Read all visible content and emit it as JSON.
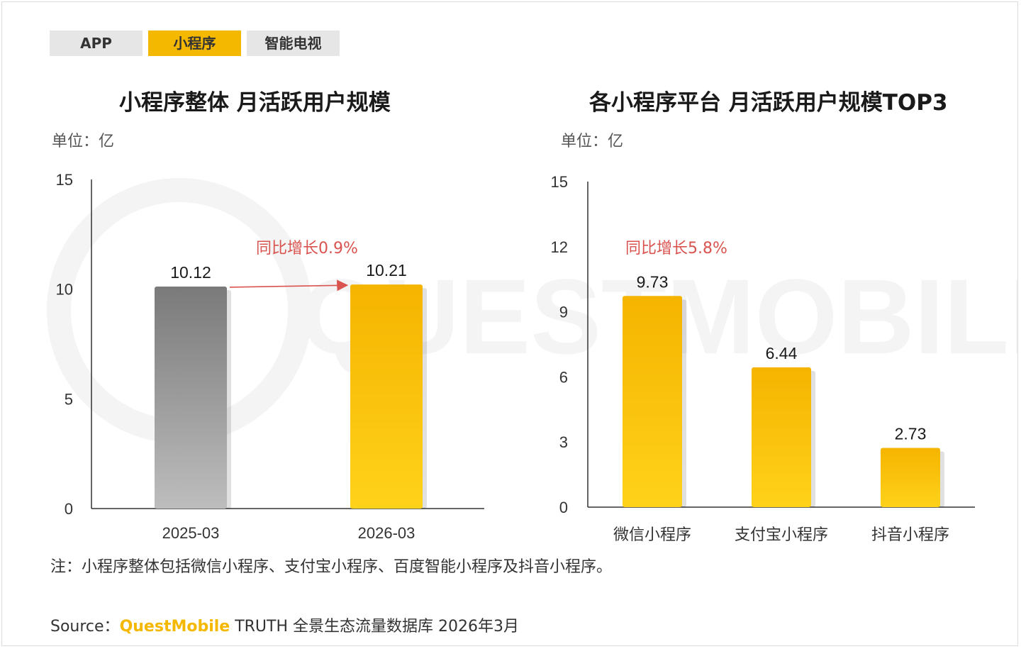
{
  "tabs": [
    {
      "label": "APP",
      "active": false
    },
    {
      "label": "小程序",
      "active": true
    },
    {
      "label": "智能电视",
      "active": false
    }
  ],
  "watermark_text": "QUESTMOBILE",
  "colors": {
    "tab_active": "#f5b800",
    "gray_bar": "#808080",
    "yellow_bar": "#f7bb00",
    "growth_text": "#d9534f"
  },
  "chart_data": [
    {
      "type": "bar",
      "title": "小程序整体 月活跃用户规模",
      "unit": "单位：亿",
      "categories": [
        "2025-03",
        "2026-03"
      ],
      "values": [
        10.12,
        10.21
      ],
      "value_labels": [
        "10.12",
        "10.21"
      ],
      "bar_colors": [
        "gray",
        "yellow"
      ],
      "ylim": [
        0,
        15
      ],
      "yticks": [
        "0",
        "5",
        "10",
        "15"
      ],
      "annotation": "同比增长0.9%",
      "grid": false
    },
    {
      "type": "bar",
      "title": "各小程序平台 月活跃用户规模TOP3",
      "unit": "单位：亿",
      "categories": [
        "微信小程序",
        "支付宝小程序",
        "抖音小程序"
      ],
      "values": [
        9.73,
        6.44,
        2.73
      ],
      "value_labels": [
        "9.73",
        "6.44",
        "2.73"
      ],
      "bar_colors": [
        "yellow",
        "yellow",
        "yellow"
      ],
      "ylim": [
        0,
        15
      ],
      "yticks": [
        "0",
        "3",
        "6",
        "9",
        "12",
        "15"
      ],
      "annotation": "同比增长5.8%",
      "grid": false
    }
  ],
  "footer": {
    "note": "注：小程序整体包括微信小程序、支付宝小程序、百度智能小程序及抖音小程序。",
    "source_prefix": "Source：",
    "source_brand": "QuestMobile",
    "source_rest": " TRUTH 全景生态流量数据库 2026年3月"
  }
}
